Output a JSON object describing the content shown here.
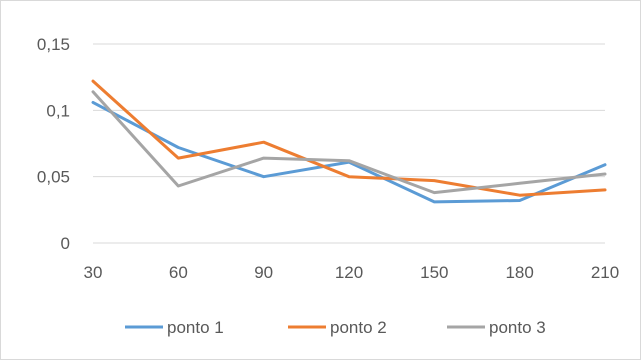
{
  "chart_data": {
    "type": "line",
    "title": "",
    "xlabel": "",
    "ylabel": "",
    "x": [
      "30",
      "60",
      "90",
      "120",
      "150",
      "180",
      "210"
    ],
    "y_ticks": [
      "0",
      "0,05",
      "0,1",
      "0,15"
    ],
    "ylim": [
      0,
      0.15
    ],
    "grid": true,
    "legend_position": "bottom",
    "series": [
      {
        "name": "ponto 1",
        "color": "#5b9bd5",
        "values": [
          0.106,
          0.072,
          0.05,
          0.061,
          0.031,
          0.032,
          0.059
        ]
      },
      {
        "name": "ponto 2",
        "color": "#ed7d31",
        "values": [
          0.122,
          0.064,
          0.076,
          0.05,
          0.047,
          0.036,
          0.04
        ]
      },
      {
        "name": "ponto 3",
        "color": "#a5a5a5",
        "values": [
          0.114,
          0.043,
          0.064,
          0.062,
          0.038,
          0.045,
          0.052
        ]
      }
    ]
  }
}
